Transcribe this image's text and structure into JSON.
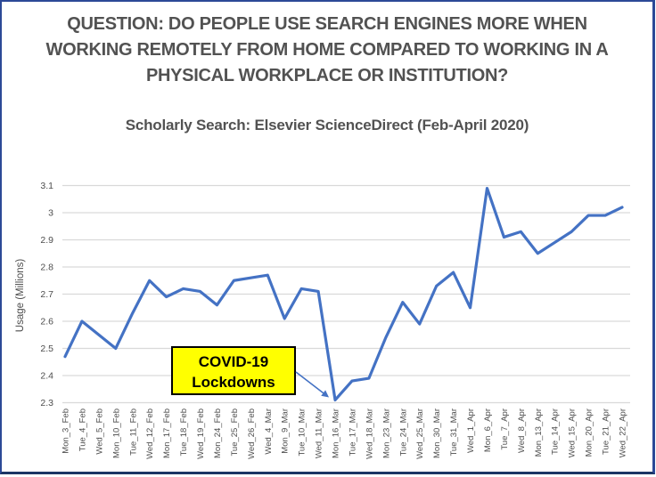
{
  "title": {
    "line1": "QUESTION: DO PEOPLE USE SEARCH ENGINES MORE WHEN",
    "line2": "WORKING REMOTELY FROM HOME COMPARED TO WORKING IN A",
    "line3": "PHYSICAL WORKPLACE OR INSTITUTION?"
  },
  "subtitle": "Scholarly Search: Elsevier ScienceDirect (Feb-April 2020)",
  "colors": {
    "line": "#4472C4",
    "grid": "#D9D9D9",
    "axis_text": "#4d4d4d",
    "title_text": "#525252",
    "annotation_bg": "#FFFF00",
    "annotation_border": "#000000",
    "annotation_text": "#000000",
    "arrow": "#4472C4",
    "frame_border": "#2c4997"
  },
  "chart_data": {
    "type": "line",
    "title": "Scholarly Search: Elsevier ScienceDirect (Feb-April 2020)",
    "xlabel": "",
    "ylabel": "Usage (Millions)",
    "ylim": [
      2.3,
      3.1
    ],
    "ytick_labels": [
      "2.3",
      "2.4",
      "2.5",
      "2.6",
      "2.7",
      "2.8",
      "2.9",
      "3",
      "3.1"
    ],
    "ytick_values": [
      2.3,
      2.4,
      2.5,
      2.6,
      2.7,
      2.8,
      2.9,
      3.0,
      3.1
    ],
    "grid": "horizontal",
    "legend": false,
    "categories": [
      "Mon_3_Feb",
      "Tue_4_Feb",
      "Wed_5_Feb",
      "Mon_10_Feb",
      "Tue_11_Feb",
      "Wed_12_Feb",
      "Mon_17_Feb",
      "Tue_18_Feb",
      "Wed_19_Feb",
      "Mon_24_Feb",
      "Tue_25_Feb",
      "Wed_26_Feb",
      "Wed_4_Mar",
      "Mon_9_Mar",
      "Tue_10_Mar",
      "Wed_11_Mar",
      "Mon_16_Mar",
      "Tue_17_Mar",
      "Wed_18_Mar",
      "Mon_23_Mar",
      "Tue_24_Mar",
      "Wed_25_Mar",
      "Mon_30_Mar",
      "Tue_31_Mar",
      "Wed_1_Apr",
      "Mon_6_Apr",
      "Tue_7_Apr",
      "Wed_8_Apr",
      "Mon_13_Apr",
      "Tue_14_Apr",
      "Wed_15_Apr",
      "Mon_20_Apr",
      "Tue_21_Apr",
      "Wed_22_Apr"
    ],
    "values": [
      2.47,
      2.6,
      2.55,
      2.5,
      2.63,
      2.75,
      2.69,
      2.72,
      2.71,
      2.66,
      2.75,
      2.76,
      2.77,
      2.61,
      2.72,
      2.71,
      2.31,
      2.38,
      2.39,
      2.54,
      2.67,
      2.59,
      2.73,
      2.78,
      2.65,
      3.09,
      2.91,
      2.93,
      2.85,
      2.89,
      2.93,
      2.99,
      2.99,
      3.02
    ],
    "annotation": {
      "line1": "COVID-19",
      "line2": "Lockdowns",
      "points_to_category": "Mon_16_Mar"
    }
  }
}
